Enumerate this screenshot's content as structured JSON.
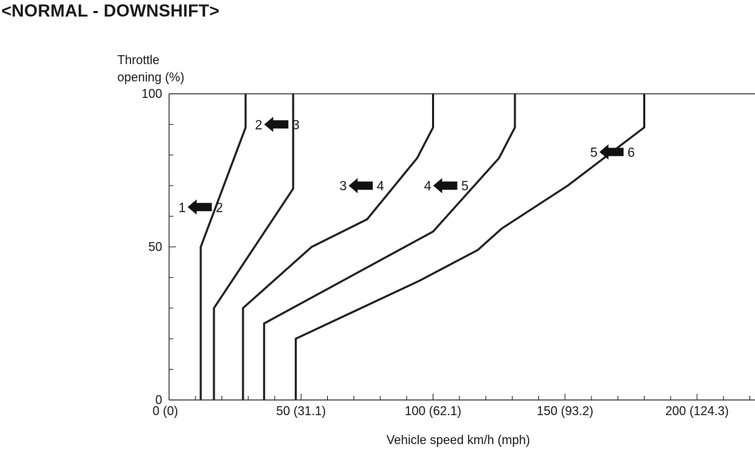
{
  "page": {
    "title": "<NORMAL - DOWNSHIFT>"
  },
  "chart_data": {
    "type": "line",
    "title": "<NORMAL - DOWNSHIFT>",
    "xlabel": "Vehicle speed km/h (mph)",
    "ylabel_lines": [
      "Throttle",
      "opening (%)"
    ],
    "xlim": [
      0,
      220
    ],
    "ylim": [
      0,
      100
    ],
    "x_ticks": [
      {
        "value": 0,
        "label": "0 (0)"
      },
      {
        "value": 50,
        "label": "50 (31.1)"
      },
      {
        "value": 100,
        "label": "100 (62.1)"
      },
      {
        "value": 150,
        "label": "150 (93.2)"
      },
      {
        "value": 200,
        "label": "200 (124.3)"
      }
    ],
    "x_minor_step": 10,
    "y_ticks": [
      {
        "value": 0,
        "label": "0"
      },
      {
        "value": 50,
        "label": "50"
      },
      {
        "value": 100,
        "label": "100"
      }
    ],
    "y_minor_step": 10,
    "grid": false,
    "series": [
      {
        "label_from": "1",
        "label_to": "2",
        "label_at": [
          12,
          63
        ],
        "points": [
          [
            12,
            0
          ],
          [
            12,
            50
          ],
          [
            29,
            89
          ],
          [
            29,
            100
          ]
        ]
      },
      {
        "label_from": "2",
        "label_to": "3",
        "label_at": [
          41,
          90
        ],
        "points": [
          [
            17,
            0
          ],
          [
            17,
            30
          ],
          [
            47,
            69
          ],
          [
            47,
            100
          ]
        ]
      },
      {
        "label_from": "3",
        "label_to": "4",
        "label_at": [
          73,
          70
        ],
        "points": [
          [
            28,
            0
          ],
          [
            28,
            30
          ],
          [
            54,
            50
          ],
          [
            75,
            59
          ],
          [
            94,
            79
          ],
          [
            100,
            89
          ],
          [
            100,
            100
          ]
        ]
      },
      {
        "label_from": "4",
        "label_to": "5",
        "label_at": [
          105,
          70
        ],
        "points": [
          [
            36,
            0
          ],
          [
            36,
            25
          ],
          [
            100,
            55
          ],
          [
            125,
            79
          ],
          [
            131,
            89
          ],
          [
            131,
            100
          ]
        ]
      },
      {
        "label_from": "5",
        "label_to": "6",
        "label_at": [
          168,
          81
        ],
        "points": [
          [
            48,
            0
          ],
          [
            48,
            20
          ],
          [
            95,
            39
          ],
          [
            117,
            49
          ],
          [
            126,
            56
          ],
          [
            151,
            70
          ],
          [
            180,
            89
          ],
          [
            180,
            100
          ]
        ]
      }
    ]
  }
}
